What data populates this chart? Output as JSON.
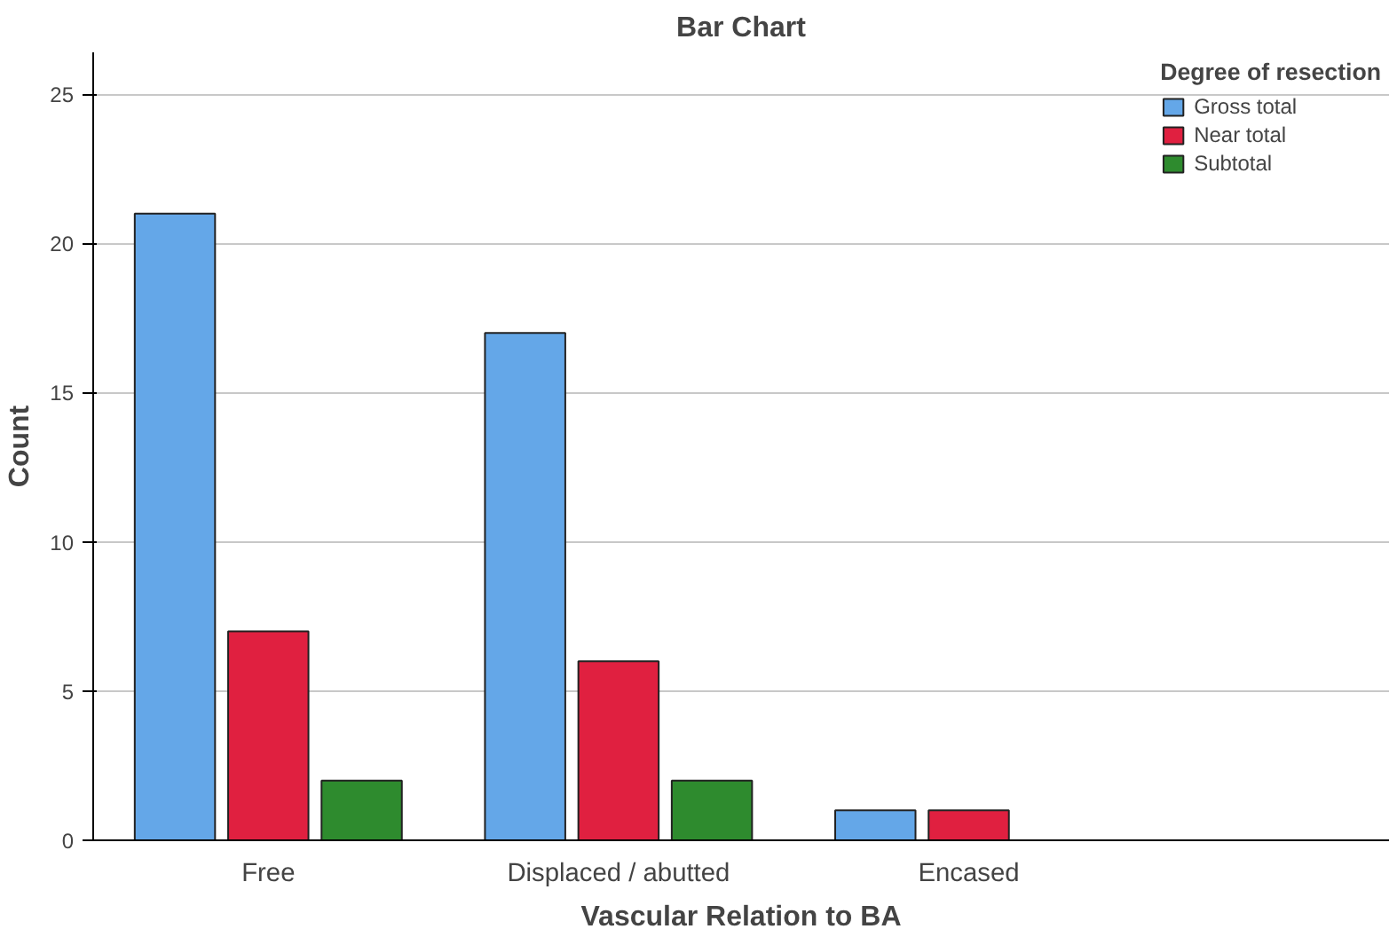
{
  "chart_data": {
    "type": "bar",
    "title": "Bar Chart",
    "xlabel": "Vascular Relation to BA",
    "ylabel": "Count",
    "legend_title": "Degree of resection",
    "categories": [
      "Free",
      "Displaced / abutted",
      "Encased"
    ],
    "series": [
      {
        "name": "Gross total",
        "color": "#64a7e8",
        "values": [
          21,
          17,
          1
        ]
      },
      {
        "name": "Near total",
        "color": "#e02040",
        "values": [
          7,
          6,
          1
        ]
      },
      {
        "name": "Subtotal",
        "color": "#2e8b2e",
        "values": [
          2,
          2,
          0
        ]
      }
    ],
    "ylim": [
      0,
      26.4
    ],
    "yticks": [
      0,
      5,
      10,
      15,
      20,
      25
    ],
    "grid": "y",
    "legend": "right"
  }
}
